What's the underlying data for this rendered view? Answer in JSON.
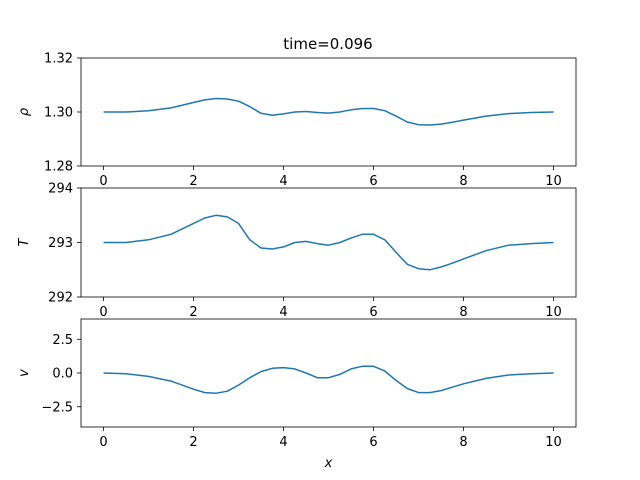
{
  "figure": {
    "title": "time=0.096"
  },
  "colors": {
    "line": "#1f77b4"
  },
  "chart_data": [
    {
      "type": "line",
      "id": "rho",
      "ylabel": "ρ",
      "xlabel": "",
      "xlim": [
        -0.5,
        10.5
      ],
      "ylim": [
        1.28,
        1.32
      ],
      "xticks": [
        0,
        2,
        4,
        6,
        8,
        10
      ],
      "yticks": [
        1.28,
        1.3,
        1.32
      ],
      "ytick_labels": [
        "1.28",
        "1.30",
        "1.32"
      ],
      "series": [
        {
          "x": [
            0,
            0.5,
            1.0,
            1.5,
            2.0,
            2.25,
            2.5,
            2.75,
            3.0,
            3.25,
            3.5,
            3.75,
            4.0,
            4.25,
            4.5,
            4.75,
            5.0,
            5.25,
            5.5,
            5.75,
            6.0,
            6.25,
            6.5,
            6.75,
            7.0,
            7.25,
            7.5,
            7.75,
            8.0,
            8.5,
            9.0,
            9.5,
            10.0
          ],
          "y": [
            1.3,
            1.3,
            1.3005,
            1.3015,
            1.3035,
            1.3045,
            1.305,
            1.3048,
            1.304,
            1.302,
            1.2995,
            1.2988,
            1.2993,
            1.3,
            1.3002,
            1.2998,
            1.2996,
            1.3,
            1.3008,
            1.3013,
            1.3013,
            1.3005,
            1.2985,
            1.2963,
            1.2953,
            1.2952,
            1.2955,
            1.2962,
            1.297,
            1.2985,
            1.2994,
            1.2998,
            1.3
          ]
        }
      ]
    },
    {
      "type": "line",
      "id": "temperature",
      "ylabel": "T",
      "xlabel": "",
      "xlim": [
        -0.5,
        10.5
      ],
      "ylim": [
        292,
        294
      ],
      "xticks": [
        0,
        2,
        4,
        6,
        8,
        10
      ],
      "yticks": [
        292,
        293,
        294
      ],
      "ytick_labels": [
        "292",
        "293",
        "294"
      ],
      "series": [
        {
          "x": [
            0,
            0.5,
            1.0,
            1.5,
            2.0,
            2.25,
            2.5,
            2.75,
            3.0,
            3.25,
            3.5,
            3.75,
            4.0,
            4.25,
            4.5,
            4.75,
            5.0,
            5.25,
            5.5,
            5.75,
            6.0,
            6.25,
            6.5,
            6.75,
            7.0,
            7.25,
            7.5,
            7.75,
            8.0,
            8.5,
            9.0,
            9.5,
            10.0
          ],
          "y": [
            293.0,
            293.0,
            293.05,
            293.15,
            293.35,
            293.45,
            293.5,
            293.47,
            293.35,
            293.05,
            292.9,
            292.88,
            292.92,
            293.0,
            293.02,
            292.98,
            292.95,
            293.0,
            293.08,
            293.15,
            293.15,
            293.05,
            292.82,
            292.6,
            292.52,
            292.5,
            292.55,
            292.62,
            292.7,
            292.85,
            292.95,
            292.98,
            293.0
          ]
        }
      ]
    },
    {
      "type": "line",
      "id": "velocity",
      "ylabel": "v",
      "xlabel": "x",
      "xlim": [
        -0.5,
        10.5
      ],
      "ylim": [
        -4.0,
        4.0
      ],
      "xticks": [
        0,
        2,
        4,
        6,
        8,
        10
      ],
      "yticks": [
        -2.5,
        0.0,
        2.5
      ],
      "ytick_labels": [
        "−2.5",
        "0.0",
        "2.5"
      ],
      "series": [
        {
          "x": [
            0,
            0.5,
            1.0,
            1.5,
            2.0,
            2.25,
            2.5,
            2.75,
            3.0,
            3.25,
            3.5,
            3.75,
            4.0,
            4.25,
            4.5,
            4.75,
            5.0,
            5.25,
            5.5,
            5.75,
            6.0,
            6.25,
            6.5,
            6.75,
            7.0,
            7.25,
            7.5,
            7.75,
            8.0,
            8.5,
            9.0,
            9.5,
            10.0
          ],
          "y": [
            0.0,
            -0.05,
            -0.25,
            -0.6,
            -1.2,
            -1.45,
            -1.5,
            -1.35,
            -0.9,
            -0.35,
            0.1,
            0.35,
            0.4,
            0.3,
            0.0,
            -0.35,
            -0.35,
            -0.1,
            0.3,
            0.5,
            0.5,
            0.15,
            -0.55,
            -1.15,
            -1.45,
            -1.45,
            -1.3,
            -1.05,
            -0.8,
            -0.4,
            -0.15,
            -0.05,
            0.0
          ]
        }
      ]
    }
  ]
}
